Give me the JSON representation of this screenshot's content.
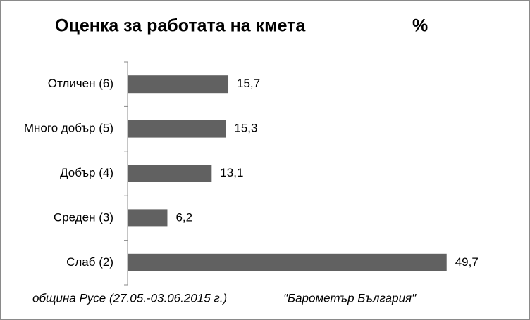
{
  "chart_data": {
    "type": "bar",
    "orientation": "horizontal",
    "title": "Оценка за работата на кмета",
    "unit": "%",
    "categories": [
      "Отличен (6)",
      "Много добър (5)",
      "Добър (4)",
      "Среден (3)",
      "Слаб (2)"
    ],
    "values": [
      15.7,
      15.3,
      13.1,
      6.2,
      49.7
    ],
    "value_labels": [
      "15,7",
      "15,3",
      "13,1",
      "6,2",
      "49,7"
    ],
    "color": "#616161",
    "xlim": [
      0,
      55
    ],
    "annotations": [
      "община Русе (27.05.-03.06.2015 г.)",
      "\"Барометър България\""
    ]
  }
}
